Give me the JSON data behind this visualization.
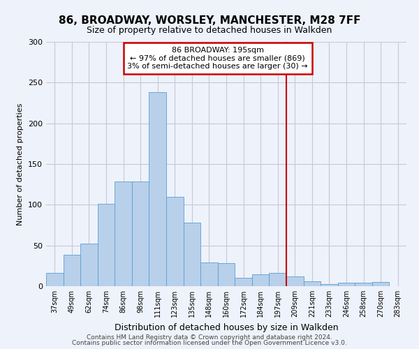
{
  "title1": "86, BROADWAY, WORSLEY, MANCHESTER, M28 7FF",
  "title2": "Size of property relative to detached houses in Walkden",
  "xlabel": "Distribution of detached houses by size in Walkden",
  "ylabel": "Number of detached properties",
  "footer1": "Contains HM Land Registry data © Crown copyright and database right 2024.",
  "footer2": "Contains public sector information licensed under the Open Government Licence v3.0.",
  "annotation_title": "86 BROADWAY: 195sqm",
  "annotation_line1": "← 97% of detached houses are smaller (869)",
  "annotation_line2": "3% of semi-detached houses are larger (30) →",
  "bar_color": "#b8d0ea",
  "bar_edge_color": "#5a9fd4",
  "red_line_color": "#cc0000",
  "grid_color": "#c8c8d8",
  "background_color": "#eef2fa",
  "categories": [
    "37sqm",
    "49sqm",
    "62sqm",
    "74sqm",
    "86sqm",
    "98sqm",
    "111sqm",
    "123sqm",
    "135sqm",
    "148sqm",
    "160sqm",
    "172sqm",
    "184sqm",
    "197sqm",
    "209sqm",
    "221sqm",
    "233sqm",
    "246sqm",
    "258sqm",
    "270sqm",
    "283sqm"
  ],
  "values": [
    16,
    39,
    52,
    101,
    129,
    129,
    238,
    110,
    78,
    29,
    28,
    10,
    15,
    16,
    12,
    6,
    3,
    4,
    4,
    5,
    0
  ],
  "red_line_index": 13,
  "ylim": [
    0,
    300
  ],
  "yticks": [
    0,
    50,
    100,
    150,
    200,
    250,
    300
  ]
}
